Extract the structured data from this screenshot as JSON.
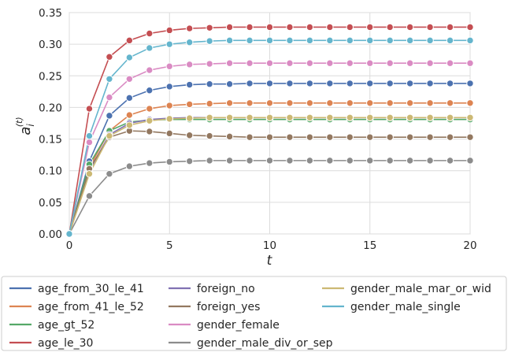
{
  "chart_data": {
    "type": "line",
    "xlabel": "t",
    "ylabel": "a_i^(t)",
    "ylabel_main": "a",
    "ylabel_sub": "i",
    "ylabel_sup": "(t)",
    "xlim": [
      0,
      20
    ],
    "ylim": [
      0,
      0.35
    ],
    "x_ticks": [
      0,
      5,
      10,
      15,
      20
    ],
    "x_tick_labels": [
      "0",
      "5",
      "10",
      "15",
      "20"
    ],
    "y_ticks": [
      0,
      0.05,
      0.1,
      0.15,
      0.2,
      0.25,
      0.3,
      0.35
    ],
    "y_tick_labels": [
      "0.00",
      "0.05",
      "0.10",
      "0.15",
      "0.20",
      "0.25",
      "0.30",
      "0.35"
    ],
    "grid": true,
    "legend_position": "bottom",
    "x": [
      0,
      1,
      2,
      3,
      4,
      5,
      6,
      7,
      8,
      9,
      10,
      11,
      12,
      13,
      14,
      15,
      16,
      17,
      18,
      19,
      20
    ],
    "series": [
      {
        "name": "age_from_30_le_41",
        "color": "#4c72b0",
        "values": [
          0.0,
          0.115,
          0.187,
          0.215,
          0.227,
          0.233,
          0.236,
          0.237,
          0.237,
          0.238,
          0.238,
          0.238,
          0.238,
          0.238,
          0.238,
          0.238,
          0.238,
          0.238,
          0.238,
          0.238,
          0.238
        ]
      },
      {
        "name": "age_from_41_le_52",
        "color": "#dd8452",
        "values": [
          0.0,
          0.105,
          0.163,
          0.188,
          0.198,
          0.203,
          0.205,
          0.206,
          0.207,
          0.207,
          0.207,
          0.207,
          0.207,
          0.207,
          0.207,
          0.207,
          0.207,
          0.207,
          0.207,
          0.207,
          0.207
        ]
      },
      {
        "name": "age_gt_52",
        "color": "#55a868",
        "values": [
          0.0,
          0.11,
          0.163,
          0.177,
          0.18,
          0.181,
          0.181,
          0.181,
          0.181,
          0.181,
          0.181,
          0.181,
          0.181,
          0.181,
          0.181,
          0.181,
          0.181,
          0.181,
          0.181,
          0.181,
          0.181
        ]
      },
      {
        "name": "age_le_30",
        "color": "#c44e52",
        "values": [
          0.0,
          0.198,
          0.28,
          0.306,
          0.317,
          0.322,
          0.325,
          0.326,
          0.327,
          0.327,
          0.327,
          0.327,
          0.327,
          0.327,
          0.327,
          0.327,
          0.327,
          0.327,
          0.327,
          0.327,
          0.327
        ]
      },
      {
        "name": "foreign_no",
        "color": "#8172b3",
        "values": [
          0.0,
          0.1,
          0.157,
          0.175,
          0.181,
          0.183,
          0.184,
          0.184,
          0.184,
          0.184,
          0.184,
          0.184,
          0.184,
          0.184,
          0.184,
          0.184,
          0.184,
          0.184,
          0.184,
          0.184,
          0.184
        ]
      },
      {
        "name": "foreign_yes",
        "color": "#937860",
        "values": [
          0.0,
          0.103,
          0.153,
          0.163,
          0.162,
          0.159,
          0.156,
          0.155,
          0.154,
          0.153,
          0.153,
          0.153,
          0.153,
          0.153,
          0.153,
          0.153,
          0.153,
          0.153,
          0.153,
          0.153,
          0.153
        ]
      },
      {
        "name": "gender_female",
        "color": "#da8bc3",
        "values": [
          0.0,
          0.145,
          0.216,
          0.245,
          0.259,
          0.265,
          0.268,
          0.269,
          0.27,
          0.27,
          0.27,
          0.27,
          0.27,
          0.27,
          0.27,
          0.27,
          0.27,
          0.27,
          0.27,
          0.27,
          0.27
        ]
      },
      {
        "name": "gender_male_div_or_sep",
        "color": "#8c8c8c",
        "values": [
          0.0,
          0.06,
          0.095,
          0.107,
          0.112,
          0.114,
          0.115,
          0.116,
          0.116,
          0.116,
          0.116,
          0.116,
          0.116,
          0.116,
          0.116,
          0.116,
          0.116,
          0.116,
          0.116,
          0.116,
          0.116
        ]
      },
      {
        "name": "gender_male_mar_or_wid",
        "color": "#ccb974",
        "values": [
          0.0,
          0.095,
          0.155,
          0.172,
          0.179,
          0.182,
          0.183,
          0.184,
          0.184,
          0.184,
          0.184,
          0.184,
          0.184,
          0.184,
          0.184,
          0.184,
          0.184,
          0.184,
          0.184,
          0.184,
          0.184
        ]
      },
      {
        "name": "gender_male_single",
        "color": "#64b5cd",
        "values": [
          0.0,
          0.155,
          0.245,
          0.279,
          0.294,
          0.3,
          0.303,
          0.305,
          0.306,
          0.306,
          0.306,
          0.306,
          0.306,
          0.306,
          0.306,
          0.306,
          0.306,
          0.306,
          0.306,
          0.306,
          0.306
        ]
      }
    ]
  }
}
